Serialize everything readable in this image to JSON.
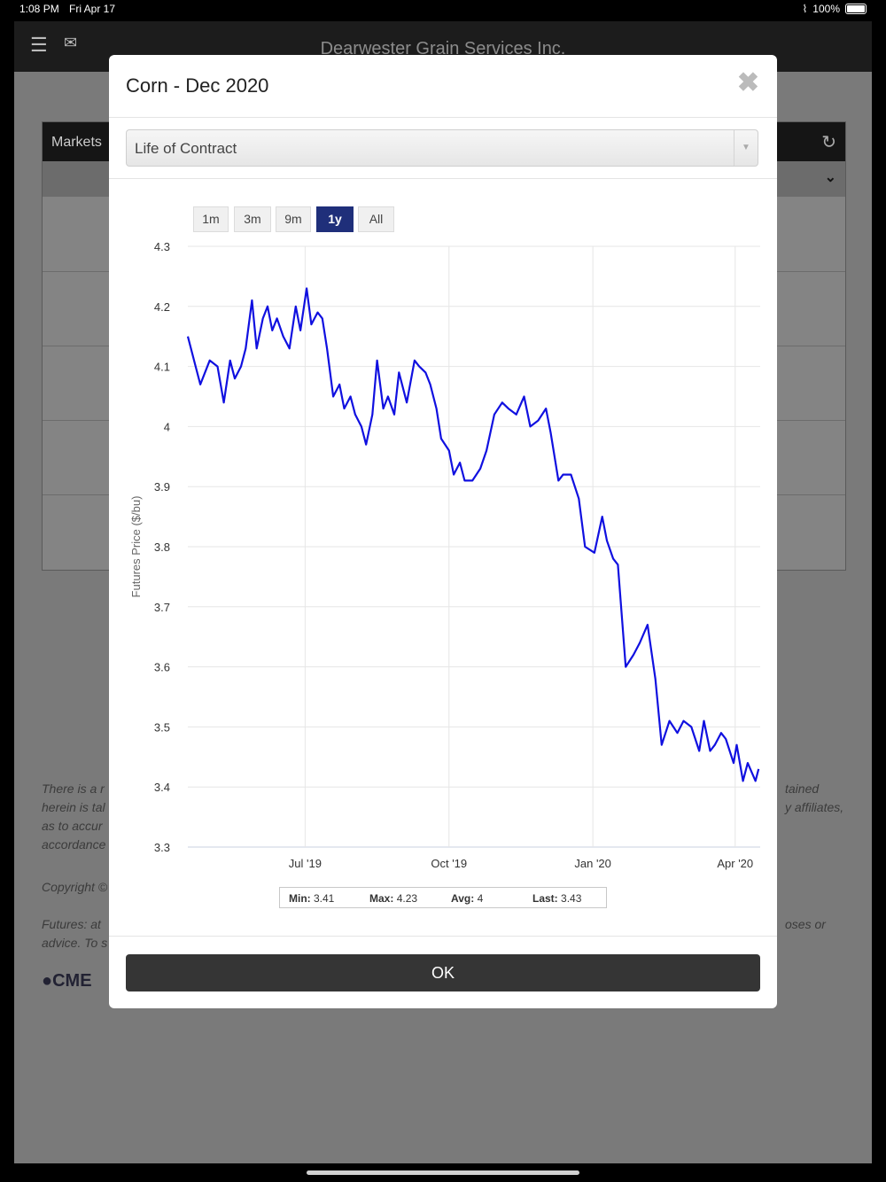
{
  "status": {
    "time": "1:08 PM",
    "date": "Fri Apr 17",
    "battery": "100%"
  },
  "app": {
    "title": "Dearwester Grain Services Inc."
  },
  "panel": {
    "label": "Markets"
  },
  "background_text": {
    "line1": "There is a r",
    "line1r": "tained",
    "line2": "herein is tal",
    "line2r": "y affiliates,",
    "line3": "as to accur",
    "line4": "accordance",
    "copyright": "Copyright ©",
    "futures1": "Futures: at",
    "futures1r": "oses or",
    "futures2": "advice. To s",
    "cme": "CME"
  },
  "modal": {
    "title": "Corn - Dec 2020",
    "select_value": "Life of Contract",
    "ranges": [
      "1m",
      "3m",
      "9m",
      "1y",
      "All"
    ],
    "active_range": "1y",
    "ok_label": "OK"
  },
  "stats": {
    "min_label": "Min:",
    "min": "3.41",
    "max_label": "Max:",
    "max": "4.23",
    "avg_label": "Avg:",
    "avg": "4",
    "last_label": "Last:",
    "last": "3.43"
  },
  "chart_data": {
    "type": "line",
    "ylabel": "Futures Price ($/bu)",
    "xlabel": "",
    "ylim": [
      3.3,
      4.3
    ],
    "yticks": [
      "4.3",
      "4.2",
      "4.1",
      "4",
      "3.9",
      "3.8",
      "3.7",
      "3.6",
      "3.5",
      "3.4",
      "3.3"
    ],
    "xticks": [
      {
        "label": "Jul '19",
        "x": "2019-07-01"
      },
      {
        "label": "Oct '19",
        "x": "2019-10-01"
      },
      {
        "label": "Jan '20",
        "x": "2020-01-01"
      },
      {
        "label": "Apr '20",
        "x": "2020-04-01"
      }
    ],
    "xlim": [
      "2019-04-17",
      "2020-04-17"
    ],
    "line_color": "#1010e0",
    "grid": true,
    "series": [
      {
        "x": [
          "2019-04-17",
          "2019-04-22",
          "2019-04-25",
          "2019-05-01",
          "2019-05-06",
          "2019-05-10",
          "2019-05-14",
          "2019-05-17",
          "2019-05-21",
          "2019-05-24",
          "2019-05-28",
          "2019-05-31",
          "2019-06-04",
          "2019-06-07",
          "2019-06-10",
          "2019-06-13",
          "2019-06-17",
          "2019-06-21",
          "2019-06-25",
          "2019-06-28",
          "2019-07-02",
          "2019-07-05",
          "2019-07-09",
          "2019-07-12",
          "2019-07-15",
          "2019-07-19",
          "2019-07-23",
          "2019-07-26",
          "2019-07-30",
          "2019-08-02",
          "2019-08-06",
          "2019-08-09",
          "2019-08-13",
          "2019-08-16",
          "2019-08-20",
          "2019-08-23",
          "2019-08-27",
          "2019-08-30",
          "2019-09-04",
          "2019-09-09",
          "2019-09-12",
          "2019-09-16",
          "2019-09-19",
          "2019-09-23",
          "2019-09-26",
          "2019-10-01",
          "2019-10-04",
          "2019-10-08",
          "2019-10-11",
          "2019-10-16",
          "2019-10-21",
          "2019-10-25",
          "2019-10-30",
          "2019-11-04",
          "2019-11-08",
          "2019-11-13",
          "2019-11-18",
          "2019-11-22",
          "2019-11-27",
          "2019-12-02",
          "2019-12-05",
          "2019-12-10",
          "2019-12-13",
          "2019-12-18",
          "2019-12-23",
          "2019-12-27",
          "2020-01-02",
          "2020-01-07",
          "2020-01-10",
          "2020-01-14",
          "2020-01-17",
          "2020-01-22",
          "2020-01-27",
          "2020-01-31",
          "2020-02-05",
          "2020-02-10",
          "2020-02-14",
          "2020-02-19",
          "2020-02-24",
          "2020-02-28",
          "2020-03-04",
          "2020-03-09",
          "2020-03-12",
          "2020-03-16",
          "2020-03-19",
          "2020-03-23",
          "2020-03-26",
          "2020-03-31",
          "2020-04-02",
          "2020-04-06",
          "2020-04-09",
          "2020-04-14",
          "2020-04-16"
        ],
        "y": [
          4.15,
          4.1,
          4.07,
          4.11,
          4.1,
          4.04,
          4.11,
          4.08,
          4.1,
          4.13,
          4.21,
          4.13,
          4.18,
          4.2,
          4.16,
          4.18,
          4.15,
          4.13,
          4.2,
          4.16,
          4.23,
          4.17,
          4.19,
          4.18,
          4.13,
          4.05,
          4.07,
          4.03,
          4.05,
          4.02,
          4.0,
          3.97,
          4.02,
          4.11,
          4.03,
          4.05,
          4.02,
          4.09,
          4.04,
          4.11,
          4.1,
          4.09,
          4.07,
          4.03,
          3.98,
          3.96,
          3.92,
          3.94,
          3.91,
          3.91,
          3.93,
          3.96,
          4.02,
          4.04,
          4.03,
          4.02,
          4.05,
          4.0,
          4.01,
          4.03,
          3.99,
          3.91,
          3.92,
          3.92,
          3.88,
          3.8,
          3.79,
          3.85,
          3.81,
          3.78,
          3.77,
          3.6,
          3.62,
          3.64,
          3.67,
          3.58,
          3.47,
          3.51,
          3.49,
          3.51,
          3.5,
          3.46,
          3.51,
          3.46,
          3.47,
          3.49,
          3.48,
          3.44,
          3.47,
          3.41,
          3.44,
          3.41,
          3.43
        ]
      }
    ]
  }
}
